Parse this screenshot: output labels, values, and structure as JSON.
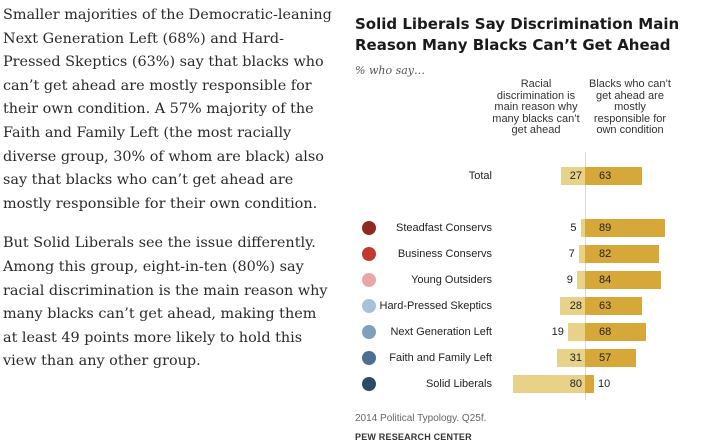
{
  "article": {
    "paragraphs": [
      "Smaller majorities of the Democratic-leaning Next Generation Left (68%) and Hard-Pressed Skeptics (63%) say that blacks who can’t get ahead are mostly responsible for their own condition. A 57% majority of the Faith and Family Left (the most racially diverse group, 30% of whom are black) also say that blacks who can’t get ahead are mostly responsible for their own condition.",
      "But Solid Liberals see the issue differently. Among this group, eight-in-ten (80%) say racial discrimination is the main reason why many blacks can’t get ahead, making them at least 49 points more likely to hold this view than any other group."
    ]
  },
  "chart_data": {
    "type": "bar",
    "title": "Solid Liberals Say Discrimination Main Reason Many Blacks Can’t Get Ahead",
    "subtitle": "% who say…",
    "column_headers": [
      "Racial discrimination is main reason why many blacks can’t get ahead",
      "Blacks who can’t get ahead are mostly responsible for own condition"
    ],
    "categories": [
      "Total",
      "Steadfast Conservs",
      "Business Conservs",
      "Young Outsiders",
      "Hard-Pressed Skeptics",
      "Next Generation Left",
      "Faith and Family Left",
      "Solid Liberals"
    ],
    "dot_colors": [
      null,
      "#8f2a22",
      "#c2392e",
      "#e8a7a2",
      "#a9c1d9",
      "#7f9fbd",
      "#4c6f92",
      "#2f4a66"
    ],
    "series": [
      {
        "name": "Racial discrimination is main reason why many blacks can’t get ahead",
        "values": [
          27,
          5,
          7,
          9,
          28,
          19,
          31,
          80
        ],
        "color": "#e8d28a"
      },
      {
        "name": "Blacks who can’t get ahead are mostly responsible for own condition",
        "values": [
          63,
          89,
          82,
          84,
          63,
          68,
          57,
          10
        ],
        "color": "#d6a83a"
      }
    ],
    "xlim": [
      0,
      100
    ]
  },
  "footnote": "2014 Political Typology. Q25f.",
  "source": "PEW RESEARCH CENTER"
}
